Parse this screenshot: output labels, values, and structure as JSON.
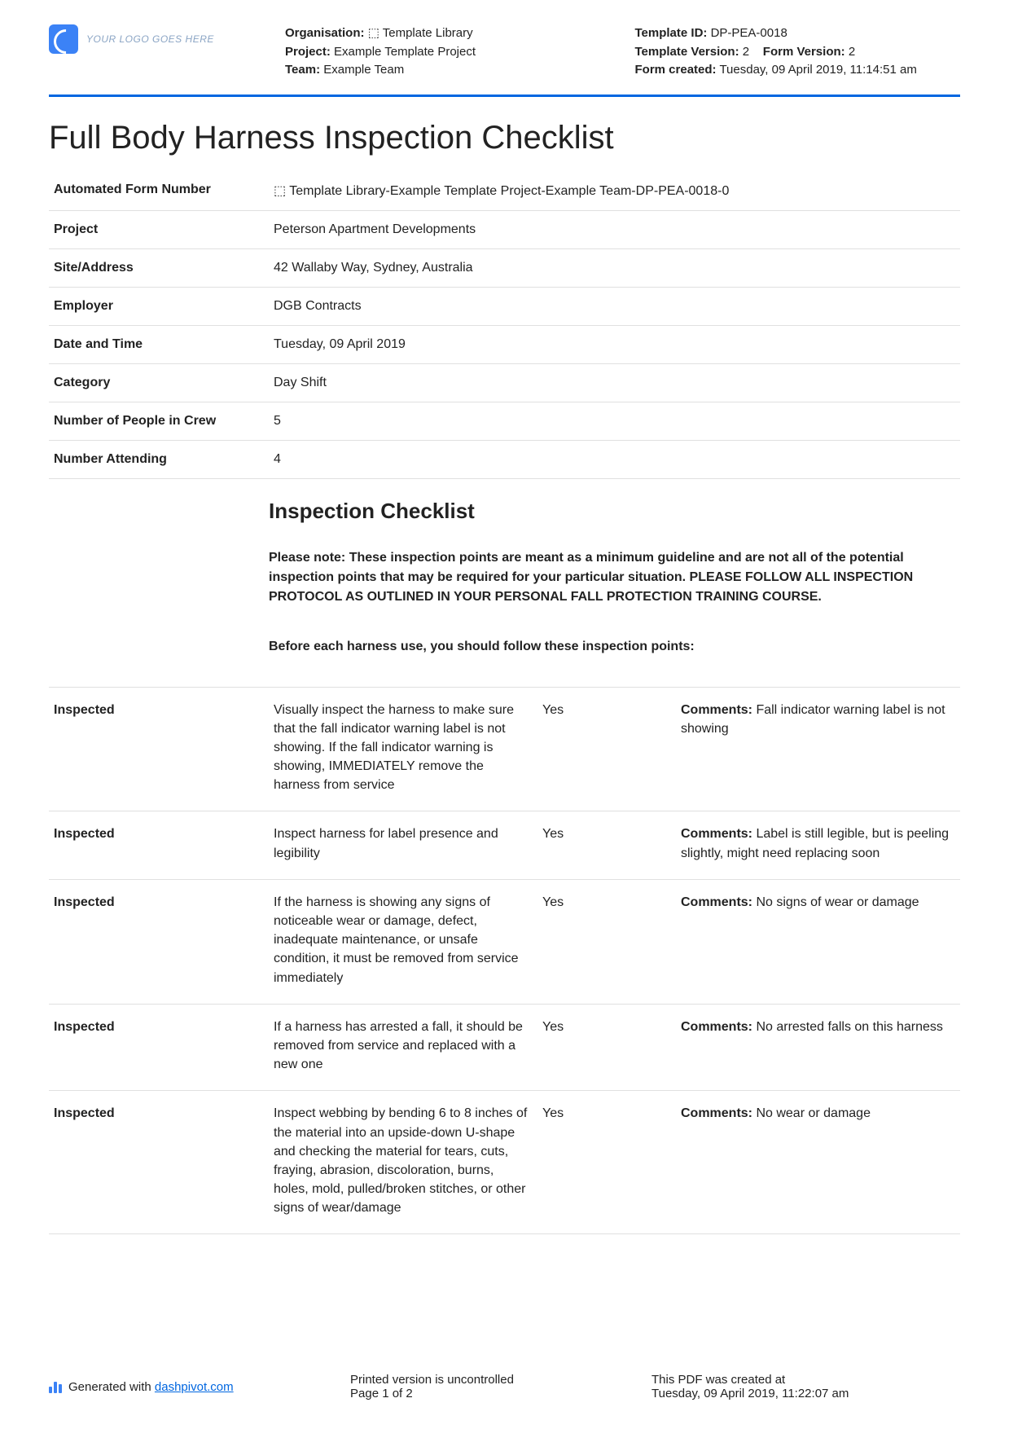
{
  "logo_placeholder": "YOUR LOGO GOES HERE",
  "header_mid": {
    "org_label": "Organisation:",
    "org_value": "⬚ Template Library",
    "project_label": "Project:",
    "project_value": "Example Template Project",
    "team_label": "Team:",
    "team_value": "Example Team"
  },
  "header_right": {
    "template_id_label": "Template ID:",
    "template_id_value": "DP-PEA-0018",
    "template_version_label": "Template Version:",
    "template_version_value": "2",
    "form_version_label": "Form Version:",
    "form_version_value": "2",
    "form_created_label": "Form created:",
    "form_created_value": "Tuesday, 09 April 2019, 11:14:51 am"
  },
  "page_title": "Full Body Harness Inspection Checklist",
  "fields": [
    {
      "label": "Automated Form Number",
      "value": "⬚ Template Library-Example Template Project-Example Team-DP-PEA-0018-0"
    },
    {
      "label": "Project",
      "value": "Peterson Apartment Developments"
    },
    {
      "label": "Site/Address",
      "value": "42 Wallaby Way, Sydney, Australia"
    },
    {
      "label": "Employer",
      "value": "DGB Contracts"
    },
    {
      "label": "Date and Time",
      "value": "Tuesday, 09 April 2019"
    },
    {
      "label": "Category",
      "value": "Day Shift"
    },
    {
      "label": "Number of People in Crew",
      "value": "5"
    },
    {
      "label": "Number Attending",
      "value": "4"
    }
  ],
  "section_heading": "Inspection Checklist",
  "note_text": "Please note: These inspection points are meant as a minimum guideline and are not all of the potential inspection points that may be required for your particular situation. PLEASE FOLLOW ALL INSPECTION PROTOCOL AS OUTLINED IN YOUR PERSONAL FALL PROTECTION TRAINING COURSE.",
  "before_text": "Before each harness use, you should follow these inspection points:",
  "inspected_label": "Inspected",
  "comments_label": "Comments:",
  "checklist": [
    {
      "desc": "Visually inspect the harness to make sure that the fall indicator warning label is not showing. If the fall indicator warning is showing, IMMEDIATELY remove the harness from service",
      "answer": "Yes",
      "comment": "Fall indicator warning label is not showing"
    },
    {
      "desc": "Inspect harness for label presence and legibility",
      "answer": "Yes",
      "comment": "Label is still legible, but is peeling slightly, might need replacing soon"
    },
    {
      "desc": "If the harness is showing any signs of noticeable wear or damage, defect, inadequate maintenance, or unsafe condition, it must be removed from service immediately",
      "answer": "Yes",
      "comment": "No signs of wear or damage"
    },
    {
      "desc": "If a harness has arrested a fall, it should be removed from service and replaced with a new one",
      "answer": "Yes",
      "comment": "No arrested falls on this harness"
    },
    {
      "desc": "Inspect webbing by bending 6 to 8 inches of the material into an upside-down U-shape and checking the material for tears, cuts, fraying, abrasion, discoloration, burns, holes, mold, pulled/broken stitches, or other signs of wear/damage",
      "answer": "Yes",
      "comment": "No wear or damage"
    }
  ],
  "footer": {
    "generated_prefix": "Generated with ",
    "generated_link": "dashpivot.com",
    "uncontrolled": "Printed version is uncontrolled",
    "page_info": "Page 1 of 2",
    "created_label": "This PDF was created at",
    "created_value": "Tuesday, 09 April 2019, 11:22:07 am"
  },
  "colors": {
    "accent": "#0066e0",
    "logo": "#3b82f6",
    "text": "#222222",
    "border": "#e0e0e0"
  }
}
